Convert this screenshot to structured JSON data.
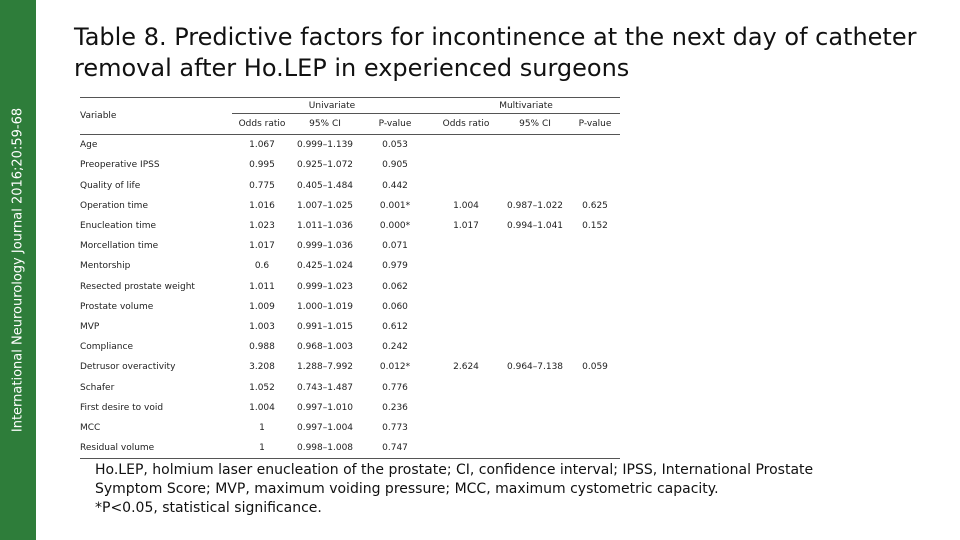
{
  "sidebar": {
    "journal": "International Neurourology Journal 2016;20:59-68"
  },
  "header": {
    "title": "Table 8. Predictive factors for incontinence at the next day of catheter removal after Ho.LEP in experienced surgeons"
  },
  "table": {
    "variable_header": "Variable",
    "groups": [
      "Univariate",
      "Multivariate"
    ],
    "subheaders": [
      "Odds ratio",
      "95% CI",
      "P-value",
      "Odds ratio",
      "95% CI",
      "P-value"
    ],
    "rows": [
      [
        "Age",
        "1.067",
        "0.999–1.139",
        "0.053"
      ],
      [
        "Preoperative IPSS",
        "0.995",
        "0.925–1.072",
        "0.905"
      ],
      [
        "Quality of life",
        "0.775",
        "0.405–1.484",
        "0.442"
      ],
      [
        "Operation time",
        "1.016",
        "1.007–1.025",
        "0.001*",
        "1.004",
        "0.987–1.022",
        "0.625"
      ],
      [
        "Enucleation time",
        "1.023",
        "1.011–1.036",
        "0.000*",
        "1.017",
        "0.994–1.041",
        "0.152"
      ],
      [
        "Morcellation time",
        "1.017",
        "0.999–1.036",
        "0.071"
      ],
      [
        "Mentorship",
        "0.6",
        "0.425–1.024",
        "0.979"
      ],
      [
        "Resected prostate weight",
        "1.011",
        "0.999–1.023",
        "0.062"
      ],
      [
        "Prostate volume",
        "1.009",
        "1.000–1.019",
        "0.060"
      ],
      [
        "MVP",
        "1.003",
        "0.991–1.015",
        "0.612"
      ],
      [
        "Compliance",
        "0.988",
        "0.968–1.003",
        "0.242"
      ],
      [
        "Detrusor overactivity",
        "3.208",
        "1.288–7.992",
        "0.012*",
        "2.624",
        "0.964–7.138",
        "0.059"
      ],
      [
        "Schafer",
        "1.052",
        "0.743–1.487",
        "0.776"
      ],
      [
        "First desire to void",
        "1.004",
        "0.997–1.010",
        "0.236"
      ],
      [
        "MCC",
        "1",
        "0.997–1.004",
        "0.773"
      ],
      [
        "Residual volume",
        "1",
        "0.998–1.008",
        "0.747"
      ]
    ]
  },
  "footnote": {
    "lines": [
      "Ho.LEP, holmium laser enucleation of the prostate; CI, confidence interval; IPSS, International Prostate",
      "Symptom Score; MVP, maximum voiding pressure; MCC, maximum cystometric capacity.",
      "*P<0.05, statistical significance."
    ]
  }
}
